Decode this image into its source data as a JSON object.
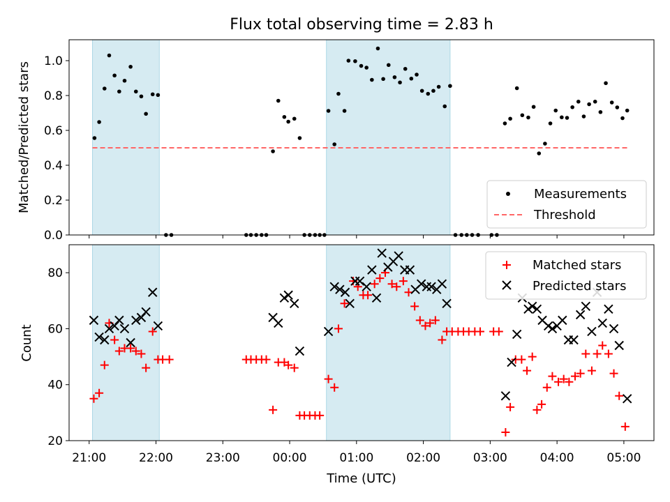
{
  "chart_data": [
    {
      "type": "scatter",
      "title": "Flux total observing time = 2.83 h",
      "ylabel": "Matched/Predicted stars",
      "ylim": [
        0,
        1.12
      ],
      "yticks": [
        "0.0",
        "0.2",
        "0.4",
        "0.6",
        "0.8",
        "1.0"
      ],
      "shaded_intervals": [
        [
          21.05,
          22.05
        ],
        [
          24.55,
          26.4
        ]
      ],
      "threshold": {
        "value": 0.5,
        "x_range": [
          21.05,
          29.05
        ],
        "color": "#ff6666"
      },
      "legend": {
        "position": "lower-right",
        "entries": [
          "Measurements",
          "Threshold"
        ]
      },
      "series": [
        {
          "name": "Measurements",
          "points": [
            [
              21.08,
              0.556
            ],
            [
              21.15,
              0.648
            ],
            [
              21.23,
              0.84
            ],
            [
              21.3,
              1.03
            ],
            [
              21.38,
              0.915
            ],
            [
              21.45,
              0.823
            ],
            [
              21.53,
              0.885
            ],
            [
              21.62,
              0.965
            ],
            [
              21.7,
              0.823
            ],
            [
              21.78,
              0.795
            ],
            [
              21.85,
              0.695
            ],
            [
              21.95,
              0.807
            ],
            [
              22.03,
              0.803
            ],
            [
              22.15,
              0.0
            ],
            [
              22.23,
              0.0
            ],
            [
              23.35,
              0.0
            ],
            [
              23.42,
              0.0
            ],
            [
              23.5,
              0.0
            ],
            [
              23.58,
              0.0
            ],
            [
              23.65,
              0.0
            ],
            [
              23.75,
              0.48
            ],
            [
              23.83,
              0.77
            ],
            [
              23.92,
              0.677
            ],
            [
              23.98,
              0.65
            ],
            [
              24.07,
              0.667
            ],
            [
              24.15,
              0.556
            ],
            [
              24.22,
              0.0
            ],
            [
              24.3,
              0.0
            ],
            [
              24.38,
              0.0
            ],
            [
              24.45,
              0.0
            ],
            [
              24.52,
              0.0
            ],
            [
              24.58,
              0.712
            ],
            [
              24.67,
              0.52
            ],
            [
              24.73,
              0.81
            ],
            [
              24.82,
              0.712
            ],
            [
              24.88,
              1.0
            ],
            [
              24.98,
              0.997
            ],
            [
              25.07,
              0.97
            ],
            [
              25.15,
              0.96
            ],
            [
              25.23,
              0.89
            ],
            [
              25.32,
              1.07
            ],
            [
              25.4,
              0.895
            ],
            [
              25.48,
              0.975
            ],
            [
              25.57,
              0.905
            ],
            [
              25.65,
              0.875
            ],
            [
              25.73,
              0.953
            ],
            [
              25.82,
              0.897
            ],
            [
              25.9,
              0.92
            ],
            [
              25.98,
              0.827
            ],
            [
              26.07,
              0.81
            ],
            [
              26.15,
              0.827
            ],
            [
              26.23,
              0.85
            ],
            [
              26.32,
              0.738
            ],
            [
              26.4,
              0.855
            ],
            [
              26.48,
              0.0
            ],
            [
              26.57,
              0.0
            ],
            [
              26.65,
              0.0
            ],
            [
              26.73,
              0.0
            ],
            [
              26.82,
              0.0
            ],
            [
              27.02,
              0.0
            ],
            [
              27.1,
              0.0
            ],
            [
              27.22,
              0.64
            ],
            [
              27.3,
              0.667
            ],
            [
              27.4,
              0.842
            ],
            [
              27.48,
              0.687
            ],
            [
              27.57,
              0.674
            ],
            [
              27.65,
              0.735
            ],
            [
              27.73,
              0.468
            ],
            [
              27.82,
              0.524
            ],
            [
              27.9,
              0.64
            ],
            [
              27.98,
              0.714
            ],
            [
              28.07,
              0.675
            ],
            [
              28.15,
              0.672
            ],
            [
              28.23,
              0.733
            ],
            [
              28.32,
              0.765
            ],
            [
              28.4,
              0.68
            ],
            [
              28.48,
              0.75
            ],
            [
              28.57,
              0.765
            ],
            [
              28.65,
              0.705
            ],
            [
              28.73,
              0.871
            ],
            [
              28.82,
              0.76
            ],
            [
              28.9,
              0.732
            ],
            [
              28.98,
              0.67
            ],
            [
              29.05,
              0.714
            ]
          ]
        }
      ]
    },
    {
      "type": "scatter",
      "ylabel": "Count",
      "xlabel": "Time (UTC)",
      "ylim": [
        20,
        90
      ],
      "yticks": [
        "20",
        "40",
        "60",
        "80"
      ],
      "xlim": [
        20.7,
        29.45
      ],
      "xticks": [
        "21:00",
        "22:00",
        "23:00",
        "00:00",
        "01:00",
        "02:00",
        "03:00",
        "04:00",
        "05:00"
      ],
      "shaded_intervals": [
        [
          21.05,
          22.05
        ],
        [
          24.55,
          26.4
        ]
      ],
      "legend": {
        "position": "top-right",
        "entries": [
          "Matched stars",
          "Predicted stars"
        ]
      },
      "series": [
        {
          "name": "Matched stars",
          "color": "#ff0000",
          "points": [
            [
              21.07,
              35
            ],
            [
              21.15,
              37
            ],
            [
              21.23,
              47
            ],
            [
              21.3,
              62
            ],
            [
              21.38,
              56
            ],
            [
              21.45,
              52
            ],
            [
              21.53,
              53
            ],
            [
              21.62,
              53
            ],
            [
              21.7,
              52
            ],
            [
              21.78,
              51
            ],
            [
              21.85,
              46
            ],
            [
              21.95,
              59
            ],
            [
              22.03,
              49
            ],
            [
              22.1,
              49
            ],
            [
              22.2,
              49
            ],
            [
              23.35,
              49
            ],
            [
              23.42,
              49
            ],
            [
              23.5,
              49
            ],
            [
              23.58,
              49
            ],
            [
              23.65,
              49
            ],
            [
              23.75,
              31
            ],
            [
              23.83,
              48
            ],
            [
              23.92,
              48
            ],
            [
              23.98,
              47
            ],
            [
              24.07,
              46
            ],
            [
              24.15,
              29
            ],
            [
              24.22,
              29
            ],
            [
              24.3,
              29
            ],
            [
              24.38,
              29
            ],
            [
              24.45,
              29
            ],
            [
              24.58,
              42
            ],
            [
              24.67,
              39
            ],
            [
              24.73,
              60
            ],
            [
              24.82,
              69
            ],
            [
              24.95,
              77
            ],
            [
              25.02,
              75
            ],
            [
              25.1,
              72
            ],
            [
              25.17,
              72
            ],
            [
              25.27,
              76
            ],
            [
              25.35,
              78
            ],
            [
              25.43,
              80
            ],
            [
              25.53,
              76
            ],
            [
              25.6,
              75
            ],
            [
              25.7,
              77
            ],
            [
              25.78,
              73
            ],
            [
              25.87,
              68
            ],
            [
              25.95,
              63
            ],
            [
              26.03,
              61
            ],
            [
              26.1,
              62
            ],
            [
              26.18,
              63
            ],
            [
              26.28,
              56
            ],
            [
              26.35,
              59
            ],
            [
              26.43,
              59
            ],
            [
              26.52,
              59
            ],
            [
              26.6,
              59
            ],
            [
              26.68,
              59
            ],
            [
              26.77,
              59
            ],
            [
              26.85,
              59
            ],
            [
              27.05,
              59
            ],
            [
              27.13,
              59
            ],
            [
              27.23,
              23
            ],
            [
              27.3,
              32
            ],
            [
              27.38,
              49
            ],
            [
              27.47,
              49
            ],
            [
              27.55,
              45
            ],
            [
              27.63,
              50
            ],
            [
              27.7,
              31
            ],
            [
              27.77,
              33
            ],
            [
              27.85,
              39
            ],
            [
              27.93,
              43
            ],
            [
              28.02,
              41
            ],
            [
              28.1,
              42
            ],
            [
              28.18,
              41
            ],
            [
              28.27,
              43
            ],
            [
              28.35,
              44
            ],
            [
              28.43,
              51
            ],
            [
              28.52,
              45
            ],
            [
              28.6,
              51
            ],
            [
              28.68,
              54
            ],
            [
              28.77,
              51
            ],
            [
              28.85,
              44
            ],
            [
              28.93,
              36
            ],
            [
              29.02,
              25
            ]
          ]
        },
        {
          "name": "Predicted stars",
          "color": "#000000",
          "points": [
            [
              21.07,
              63
            ],
            [
              21.15,
              57
            ],
            [
              21.23,
              56
            ],
            [
              21.3,
              60
            ],
            [
              21.38,
              61
            ],
            [
              21.45,
              63
            ],
            [
              21.53,
              60
            ],
            [
              21.62,
              55
            ],
            [
              21.7,
              63
            ],
            [
              21.78,
              64
            ],
            [
              21.85,
              66
            ],
            [
              21.95,
              73
            ],
            [
              22.03,
              61
            ],
            [
              23.75,
              64
            ],
            [
              23.83,
              62
            ],
            [
              23.92,
              71
            ],
            [
              23.98,
              72
            ],
            [
              24.07,
              69
            ],
            [
              24.15,
              52
            ],
            [
              24.58,
              59
            ],
            [
              24.67,
              75
            ],
            [
              24.75,
              74
            ],
            [
              24.83,
              73
            ],
            [
              24.9,
              69
            ],
            [
              24.98,
              77
            ],
            [
              25.05,
              77
            ],
            [
              25.15,
              75
            ],
            [
              25.23,
              81
            ],
            [
              25.3,
              71
            ],
            [
              25.38,
              87
            ],
            [
              25.47,
              82
            ],
            [
              25.55,
              84
            ],
            [
              25.63,
              86
            ],
            [
              25.72,
              81
            ],
            [
              25.8,
              81
            ],
            [
              25.88,
              74
            ],
            [
              25.97,
              76
            ],
            [
              26.05,
              75
            ],
            [
              26.12,
              75
            ],
            [
              26.2,
              74
            ],
            [
              26.28,
              76
            ],
            [
              26.35,
              69
            ],
            [
              27.23,
              36
            ],
            [
              27.32,
              48
            ],
            [
              27.4,
              58
            ],
            [
              27.48,
              71
            ],
            [
              27.57,
              67
            ],
            [
              27.63,
              68
            ],
            [
              27.7,
              67
            ],
            [
              27.78,
              63
            ],
            [
              27.87,
              61
            ],
            [
              27.93,
              60
            ],
            [
              28.0,
              61
            ],
            [
              28.08,
              63
            ],
            [
              28.17,
              56
            ],
            [
              28.25,
              56
            ],
            [
              28.35,
              65
            ],
            [
              28.43,
              68
            ],
            [
              28.52,
              59
            ],
            [
              28.6,
              73
            ],
            [
              28.68,
              62
            ],
            [
              28.77,
              67
            ],
            [
              28.85,
              60
            ],
            [
              28.93,
              54
            ],
            [
              29.05,
              35
            ]
          ]
        }
      ]
    }
  ]
}
